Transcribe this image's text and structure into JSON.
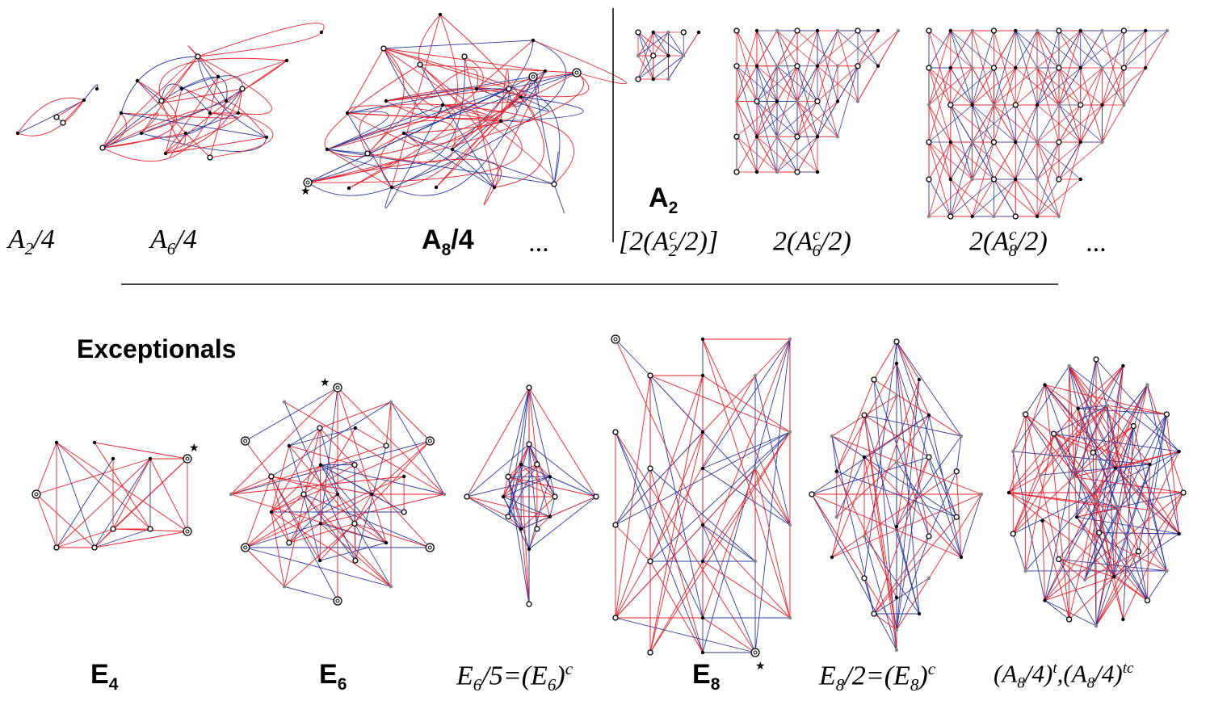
{
  "top_left": {
    "labels": [
      {
        "main": "A",
        "sub": "2",
        "rest": "/4"
      },
      {
        "main": "A",
        "sub": "6",
        "rest": "/4"
      },
      {
        "main": "A",
        "sub": "8",
        "rest": "/4"
      },
      {
        "main": "..."
      }
    ]
  },
  "top_right": {
    "heading": {
      "main": "A",
      "sub": "2"
    },
    "labels": [
      {
        "text": "[2(A",
        "sub": "2",
        "sup": "c",
        "rest": "/2)]"
      },
      {
        "text": "2(A",
        "sub": "6",
        "sup": "c",
        "rest": "/2)"
      },
      {
        "text": "2(A",
        "sub": "8",
        "sup": "c",
        "rest": "/2)"
      },
      {
        "text": "..."
      }
    ]
  },
  "exceptionals": {
    "title": "Exceptionals",
    "labels": [
      {
        "main": "E",
        "sub": "4"
      },
      {
        "main": "E",
        "sub": "6"
      },
      {
        "text": "E",
        "sub": "6",
        "rest": "/5=(E",
        "sub2": "6",
        "rest2": ")",
        "sup": "c"
      },
      {
        "main": "E",
        "sub": "8"
      },
      {
        "text": "E",
        "sub": "8",
        "rest": "/2=(E",
        "sub2": "8",
        "rest2": ")",
        "sup": "c"
      },
      {
        "text": "(A",
        "sub": "8",
        "rest": "/4)",
        "sup": "t",
        "rest2": ",(A",
        "sub2": "8",
        "rest3": "/4)",
        "sup2": "tc"
      }
    ]
  },
  "colors": {
    "red_edge": "#e8202a",
    "blue_edge": "#2b3a9e",
    "vertex": "#000000"
  },
  "star_symbol": "★"
}
